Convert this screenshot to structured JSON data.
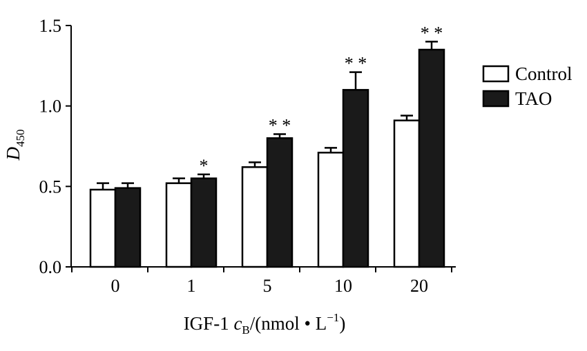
{
  "chart_data": {
    "type": "bar",
    "title": "",
    "ylabel_main": "D",
    "ylabel_sub": "450",
    "xlabel_prefix": "IGF-1 ",
    "xlabel_var": "c",
    "xlabel_var_sub": "B",
    "xlabel_unit": "/(nmol • L",
    "xlabel_unit_sup": "−1",
    "xlabel_close": ")",
    "ylim": [
      0,
      1.5
    ],
    "yticks": [
      "0.0",
      "0.5",
      "1.0",
      "1.5"
    ],
    "ytick_values": [
      0,
      0.5,
      1.0,
      1.5
    ],
    "categories": [
      "0",
      "1",
      "5",
      "10",
      "20"
    ],
    "series": [
      {
        "name": "Control",
        "color": "#ffffff",
        "values": [
          0.48,
          0.52,
          0.62,
          0.71,
          0.91
        ],
        "errors": [
          0.04,
          0.03,
          0.03,
          0.03,
          0.03
        ],
        "significance": [
          "",
          "",
          "",
          "",
          ""
        ]
      },
      {
        "name": "TAO",
        "color": "#1a1a1a",
        "values": [
          0.49,
          0.55,
          0.8,
          1.1,
          1.35
        ],
        "errors": [
          0.03,
          0.025,
          0.025,
          0.11,
          0.05
        ],
        "significance": [
          "",
          "*",
          "**",
          "**",
          "**"
        ]
      }
    ],
    "legend_position": "right"
  }
}
